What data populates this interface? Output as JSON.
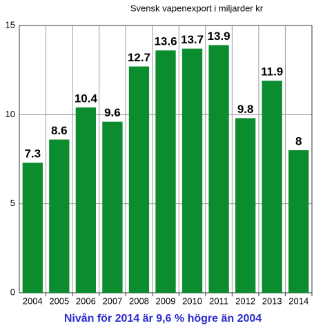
{
  "chart_data": {
    "type": "bar",
    "title": "Svensk vapenexport i miljarder kr",
    "categories": [
      "2004",
      "2005",
      "2006",
      "2007",
      "2008",
      "2009",
      "2010",
      "2011",
      "2012",
      "2013",
      "2014"
    ],
    "values": [
      7.3,
      8.6,
      10.4,
      9.6,
      12.7,
      13.6,
      13.7,
      13.9,
      9.8,
      11.9,
      8
    ],
    "color": "#0a8c2f",
    "ylim": [
      0,
      15
    ],
    "yticks": [
      0,
      5,
      10,
      15
    ],
    "grid": true,
    "annotation": "Nivån för 2014 är 9,6 % högre än 2004"
  }
}
